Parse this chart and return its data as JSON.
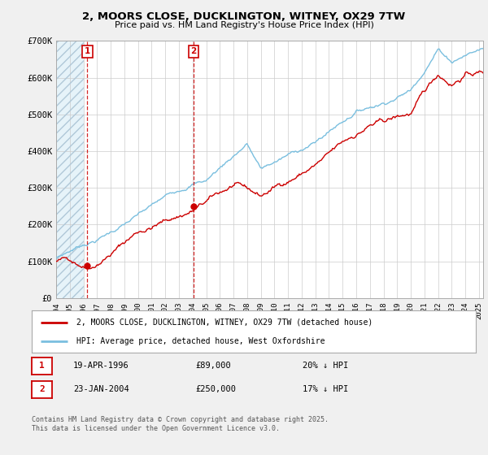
{
  "title": "2, MOORS CLOSE, DUCKLINGTON, WITNEY, OX29 7TW",
  "subtitle": "Price paid vs. HM Land Registry's House Price Index (HPI)",
  "ylim": [
    0,
    700000
  ],
  "yticks": [
    0,
    100000,
    200000,
    300000,
    400000,
    500000,
    600000,
    700000
  ],
  "ytick_labels": [
    "£0",
    "£100K",
    "£200K",
    "£300K",
    "£400K",
    "£500K",
    "£600K",
    "£700K"
  ],
  "xmin": 1994.0,
  "xmax": 2025.3,
  "hpi_color": "#7abfdf",
  "price_color": "#cc0000",
  "hatch_bg": "#dceef7",
  "t1_x": 1996.29,
  "t1_price": 89000,
  "t2_x": 2004.06,
  "t2_price": 250000,
  "legend_line1": "2, MOORS CLOSE, DUCKLINGTON, WITNEY, OX29 7TW (detached house)",
  "legend_line2": "HPI: Average price, detached house, West Oxfordshire",
  "note1_label": "1",
  "note1_date": "19-APR-1996",
  "note1_price": "£89,000",
  "note1_hpi": "20% ↓ HPI",
  "note2_label": "2",
  "note2_date": "23-JAN-2004",
  "note2_price": "£250,000",
  "note2_hpi": "17% ↓ HPI",
  "footer": "Contains HM Land Registry data © Crown copyright and database right 2025.\nThis data is licensed under the Open Government Licence v3.0.",
  "bg_color": "#f0f0f0",
  "plot_bg": "#ffffff"
}
